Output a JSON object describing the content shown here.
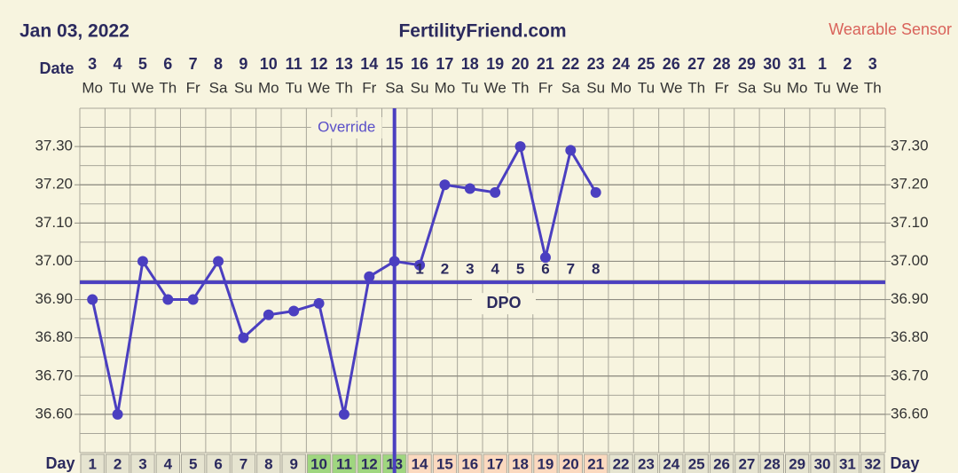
{
  "chart_data": {
    "type": "line",
    "title": "FertilityFriend.com",
    "date": "Jan 03, 2022",
    "source": "Wearable Sensor",
    "date_label": "Date",
    "day_label": "Day",
    "categories": [
      1,
      2,
      3,
      4,
      5,
      6,
      7,
      8,
      9,
      10,
      11,
      12,
      13,
      14,
      15,
      16,
      17,
      18,
      19,
      20,
      21,
      22,
      23,
      24,
      25,
      26,
      27,
      28,
      29,
      30,
      31,
      32
    ],
    "dates": [
      3,
      4,
      5,
      6,
      7,
      8,
      9,
      10,
      11,
      12,
      13,
      14,
      15,
      16,
      17,
      18,
      19,
      20,
      21,
      22,
      23,
      24,
      25,
      26,
      27,
      28,
      29,
      30,
      31,
      1,
      2,
      3
    ],
    "weekdays": [
      "Mo",
      "Tu",
      "We",
      "Th",
      "Fr",
      "Sa",
      "Su",
      "Mo",
      "Tu",
      "We",
      "Th",
      "Fr",
      "Sa",
      "Su",
      "Mo",
      "Tu",
      "We",
      "Th",
      "Fr",
      "Sa",
      "Su",
      "Mo",
      "Tu",
      "We",
      "Th",
      "Fr",
      "Sa",
      "Su",
      "Mo",
      "Tu",
      "We",
      "Th"
    ],
    "day_colors": [
      "#e6e4d0",
      "#e6e4d0",
      "#e6e4d0",
      "#e6e4d0",
      "#e6e4d0",
      "#e6e4d0",
      "#e6e4d0",
      "#e6e4d0",
      "#e6e4d0",
      "#9fd67f",
      "#9fd67f",
      "#9fd67f",
      "#9fd67f",
      "#fbd9bf",
      "#fbd9bf",
      "#fbd9bf",
      "#fbd9bf",
      "#fbd9bf",
      "#fbd9bf",
      "#fbd9bf",
      "#fbd9bf",
      "#e6e4d0",
      "#e6e4d0",
      "#e6e4d0",
      "#e6e4d0",
      "#e6e4d0",
      "#e6e4d0",
      "#e6e4d0",
      "#e6e4d0",
      "#e6e4d0",
      "#e6e4d0",
      "#e6e4d0"
    ],
    "values": [
      36.9,
      36.6,
      37.0,
      36.9,
      36.9,
      37.0,
      36.8,
      36.86,
      36.87,
      36.89,
      36.6,
      36.96,
      37.0,
      36.99,
      37.2,
      37.19,
      37.18,
      37.3,
      37.01,
      37.29,
      37.18,
      null,
      null,
      null,
      null,
      null,
      null,
      null,
      null,
      null,
      null,
      null
    ],
    "color": "#4b3fc0",
    "coverline": 36.945,
    "override_day": 13,
    "override_label": "Override",
    "dpo_label": "DPO",
    "dpo": [
      null,
      null,
      null,
      null,
      null,
      null,
      null,
      null,
      null,
      null,
      null,
      null,
      null,
      1,
      2,
      3,
      4,
      5,
      6,
      7,
      8,
      null,
      null,
      null,
      null,
      null,
      null,
      null,
      null,
      null,
      null,
      null
    ],
    "ylim": [
      36.5,
      37.4
    ],
    "yticks": [
      {
        "value": 36.6,
        "label": "36.60"
      },
      {
        "value": 36.7,
        "label": "36.70"
      },
      {
        "value": 36.8,
        "label": "36.80"
      },
      {
        "value": 36.9,
        "label": "36.90"
      },
      {
        "value": 37.0,
        "label": "37.00"
      },
      {
        "value": 37.1,
        "label": "37.10"
      },
      {
        "value": 37.2,
        "label": "37.20"
      },
      {
        "value": 37.3,
        "label": "37.30"
      }
    ],
    "grid": true
  }
}
